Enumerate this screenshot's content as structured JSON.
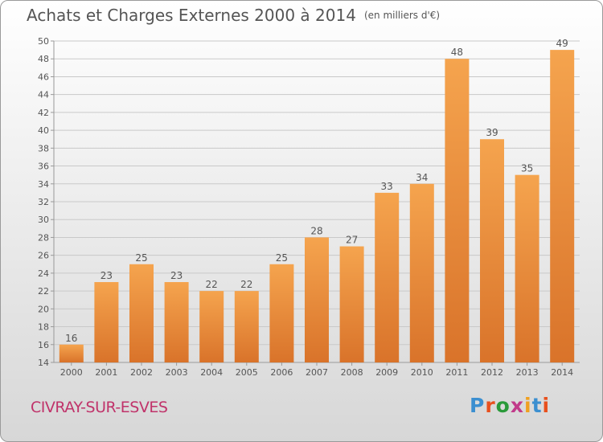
{
  "title": "Achats et Charges Externes 2000 à 2014",
  "unit": "(en milliers d'€)",
  "town": "CIVRAY-SUR-ESVES",
  "logo": {
    "text": "Proxiti",
    "colors": [
      "#3b8fd0",
      "#e8501e",
      "#2a9a3a",
      "#c13a8a",
      "#f0a020",
      "#3b8fd0",
      "#e8501e"
    ]
  },
  "colors": {
    "bar_light": "#f5a44e",
    "bar_dark": "#d9732a",
    "grid": "#c9c9c9",
    "text": "#555555"
  },
  "chart_data": {
    "type": "bar",
    "categories": [
      "2000",
      "2001",
      "2002",
      "2003",
      "2004",
      "2005",
      "2006",
      "2007",
      "2008",
      "2009",
      "2010",
      "2011",
      "2012",
      "2013",
      "2014"
    ],
    "values": [
      16,
      23,
      25,
      23,
      22,
      22,
      25,
      28,
      27,
      33,
      34,
      48,
      39,
      35,
      49
    ],
    "ylim": [
      14,
      50
    ],
    "yticks": [
      14,
      16,
      18,
      20,
      22,
      24,
      26,
      28,
      30,
      32,
      34,
      36,
      38,
      40,
      42,
      44,
      46,
      48,
      50
    ],
    "grid": true
  }
}
